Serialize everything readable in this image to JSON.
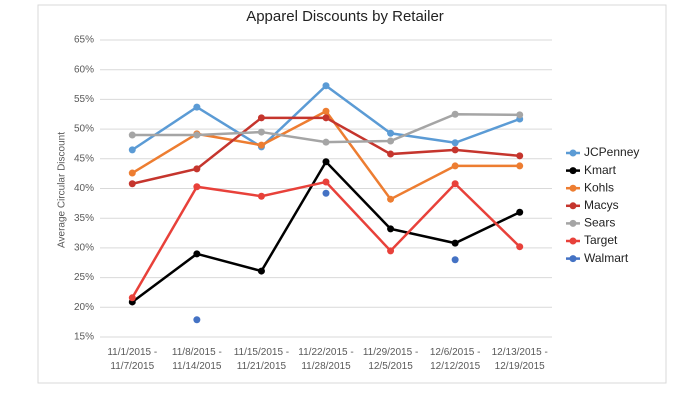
{
  "chart_data": {
    "type": "line",
    "title": "Apparel Discounts by Retailer",
    "y_label": "Average Circular Discount",
    "categories": [
      "11/1/2015 - 11/7/2015",
      "11/8/2015 - 11/14/2015",
      "11/15/2015 - 11/21/2015",
      "11/22/2015 - 11/28/2015",
      "11/29/2015 - 12/5/2015",
      "12/6/2015 - 12/12/2015",
      "12/13/2015 - 12/19/2015"
    ],
    "series": [
      {
        "name": "JCPenney",
        "color": "#5b9bd5",
        "values": [
          46.5,
          53.7,
          47,
          57.3,
          49.3,
          47.7,
          51.7
        ]
      },
      {
        "name": "Kmart",
        "color": "#000000",
        "values": [
          20.9,
          29,
          26.1,
          44.5,
          33.2,
          30.8,
          36
        ]
      },
      {
        "name": "Kohls",
        "color": "#ed7d31",
        "values": [
          42.6,
          49.2,
          47.3,
          53,
          38.2,
          43.8,
          43.8
        ]
      },
      {
        "name": "Macys",
        "color": "#c5352d",
        "values": [
          40.8,
          43.3,
          51.9,
          51.9,
          45.8,
          46.5,
          45.5
        ]
      },
      {
        "name": "Sears",
        "color": "#a5a5a5",
        "values": [
          49,
          49,
          49.5,
          47.8,
          48,
          52.5,
          52.4
        ]
      },
      {
        "name": "Target",
        "color": "#e8413a",
        "values": [
          21.6,
          40.3,
          38.7,
          41.1,
          29.5,
          40.8,
          30.2
        ]
      },
      {
        "name": "Walmart",
        "color": "#4472c4",
        "values": [
          null,
          17.9,
          null,
          39.2,
          null,
          28,
          null
        ]
      }
    ],
    "ylim": [
      15,
      65
    ],
    "yticks": [
      {
        "value": 15,
        "label": "15%"
      },
      {
        "value": 20,
        "label": "20%"
      },
      {
        "value": 25,
        "label": "25%"
      },
      {
        "value": 30,
        "label": "30%"
      },
      {
        "value": 35,
        "label": "35%"
      },
      {
        "value": 40,
        "label": "40%"
      },
      {
        "value": 45,
        "label": "45%"
      },
      {
        "value": 50,
        "label": "50%"
      },
      {
        "value": 55,
        "label": "55%"
      },
      {
        "value": 60,
        "label": "60%"
      },
      {
        "value": 65,
        "label": "65%"
      }
    ],
    "grid": true,
    "legend": "right"
  }
}
